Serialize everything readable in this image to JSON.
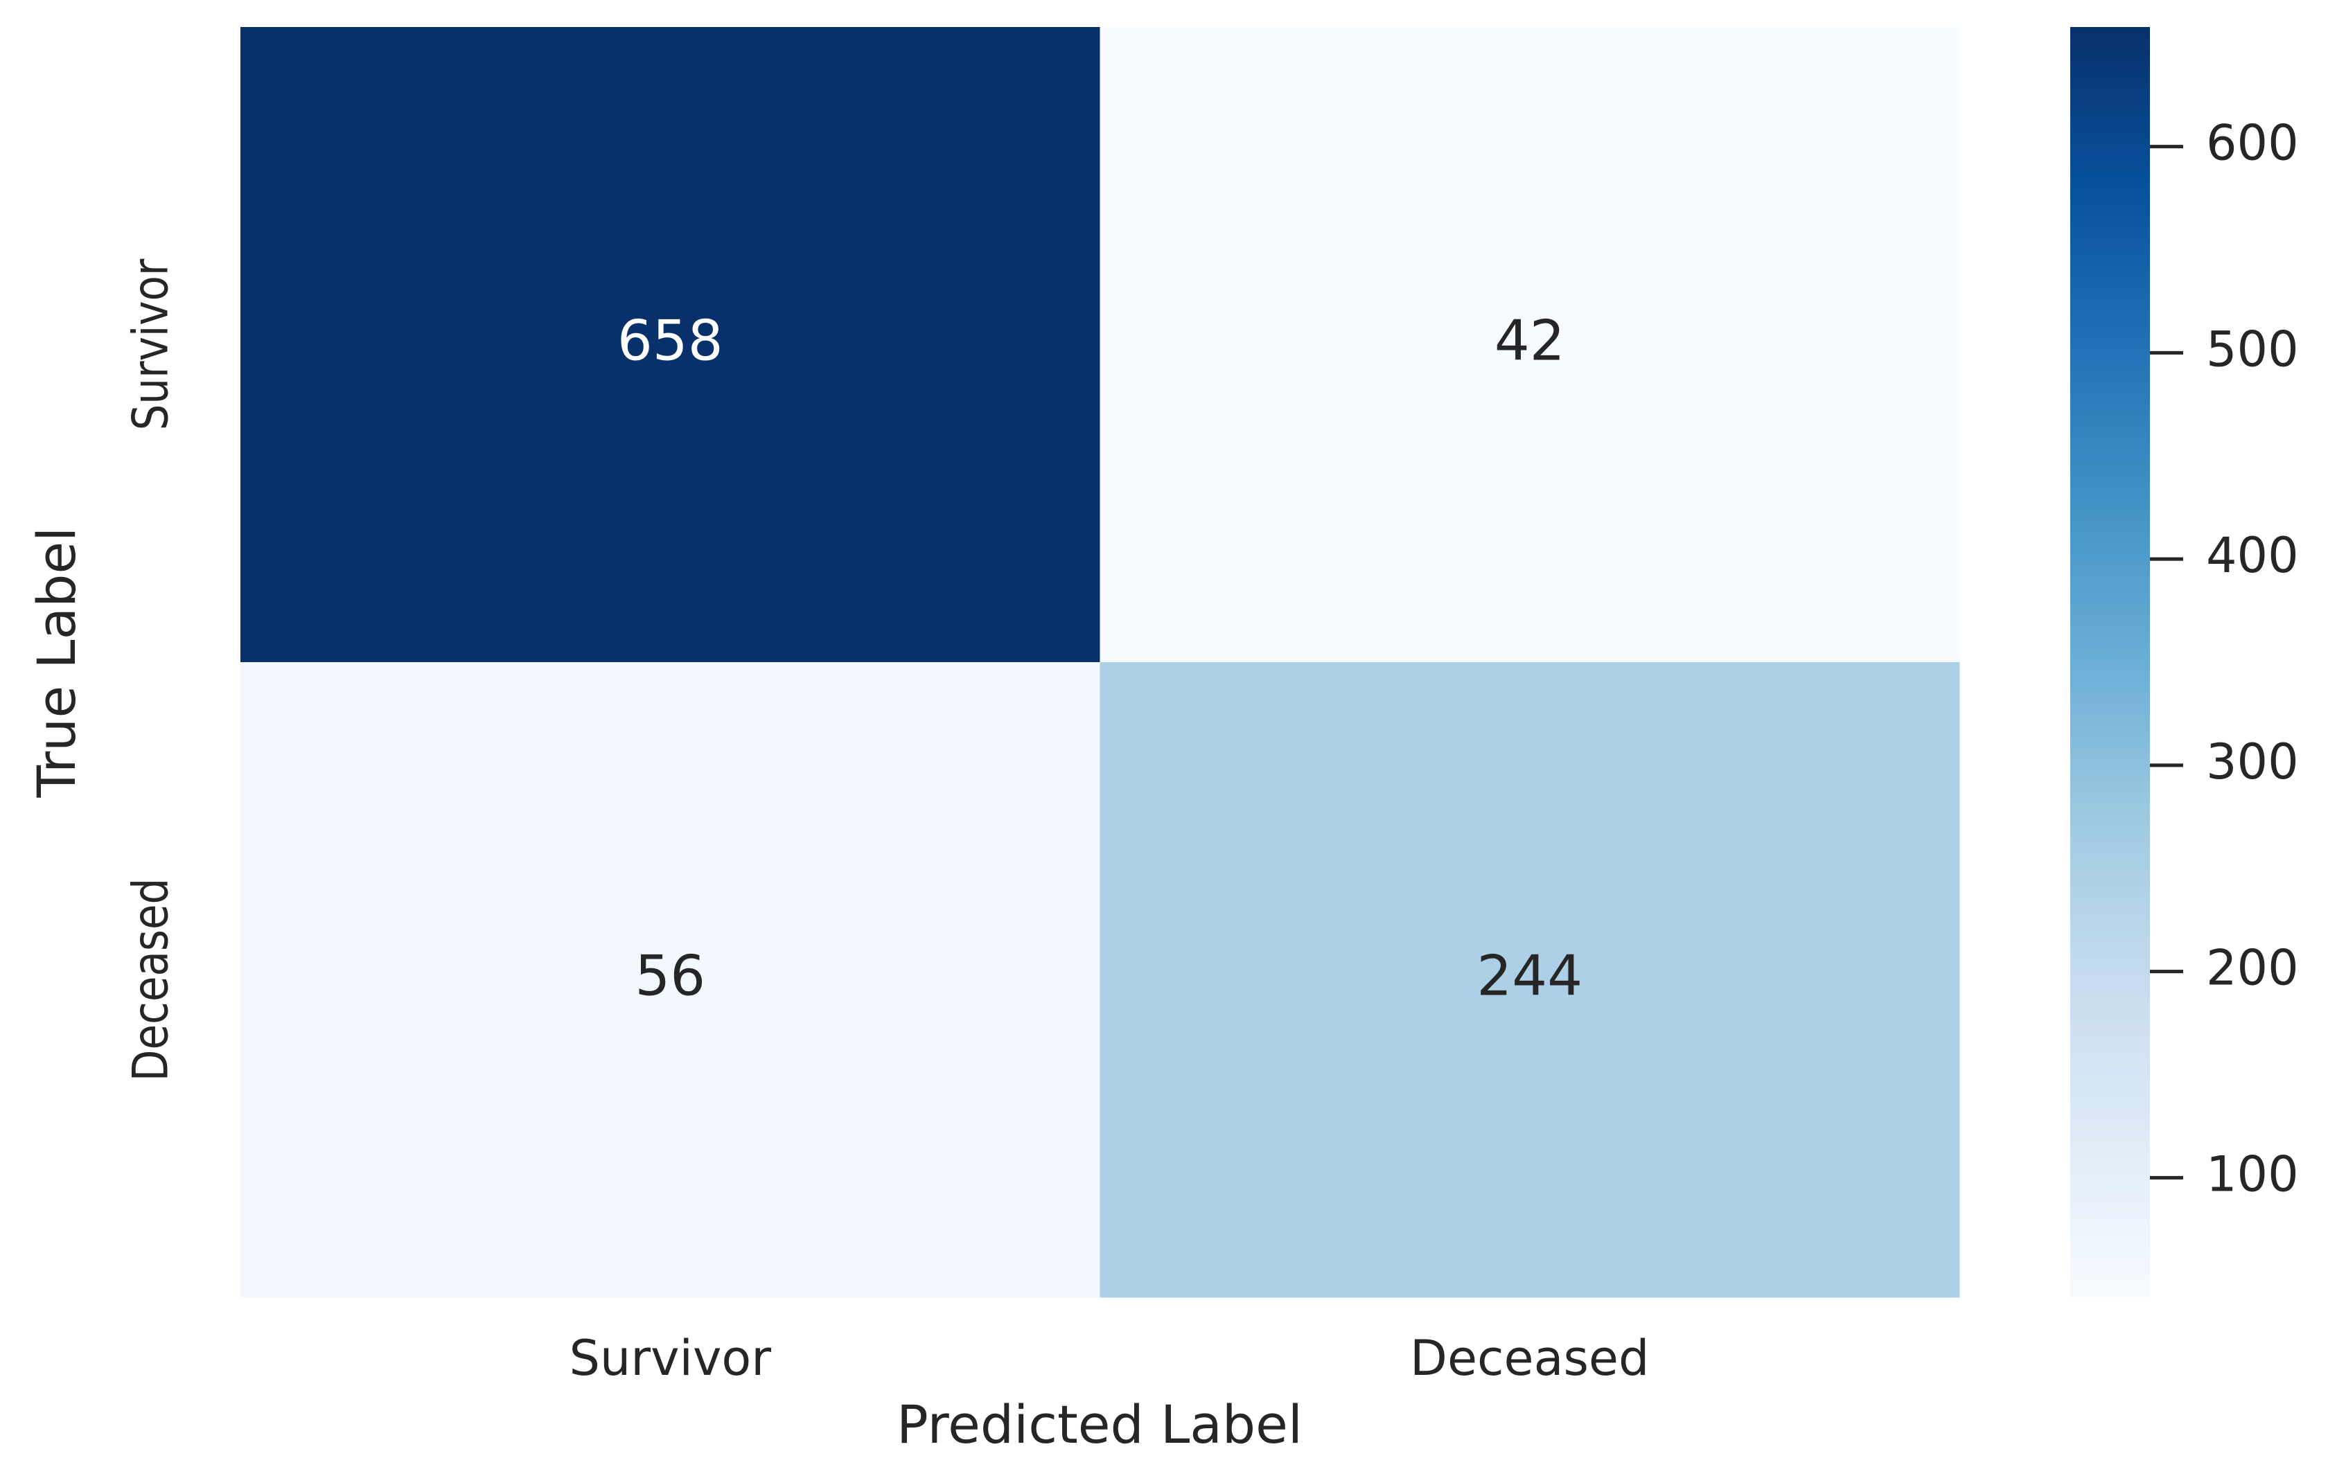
{
  "chart_data": {
    "type": "heatmap",
    "x_label": "Predicted Label",
    "y_label": "True Label",
    "x_categories": [
      "Survivor",
      "Deceased"
    ],
    "y_categories": [
      "Survivor",
      "Deceased"
    ],
    "values": [
      [
        658,
        42
      ],
      [
        56,
        244
      ]
    ],
    "colorscale": [
      "#f7fbff",
      "#deebf7",
      "#c6dbef",
      "#9ecae1",
      "#6baed6",
      "#4292c6",
      "#2171b5",
      "#08519c",
      "#08306b"
    ],
    "clim": [
      42,
      658
    ],
    "cticks": [
      100,
      200,
      300,
      400,
      500,
      600
    ]
  }
}
